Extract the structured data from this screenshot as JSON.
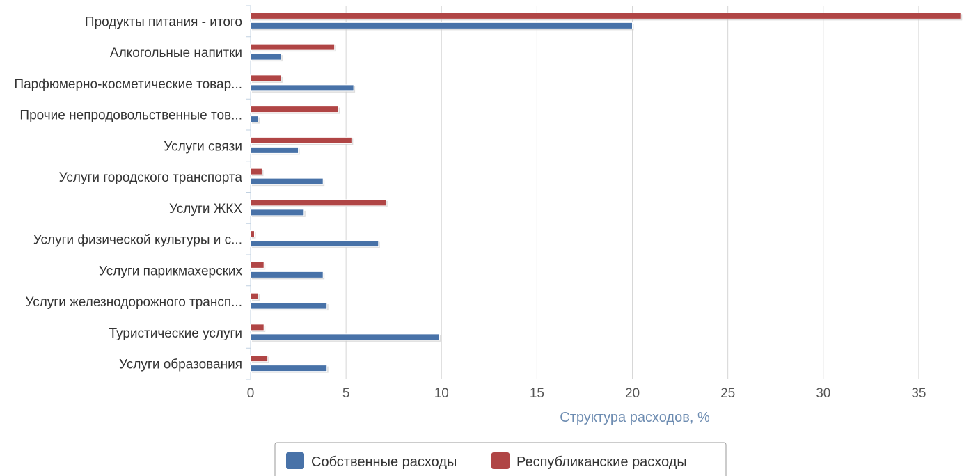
{
  "chart_data": {
    "type": "bar",
    "orientation": "horizontal",
    "categories": [
      "Продукты питания - итого",
      "Алкогольные напитки",
      "Парфюмерно-косметические товар...",
      "Прочие непродовольственные тов...",
      "Услуги связи",
      "Услуги городского транспорта",
      "Услуги ЖКХ",
      "Услуги физической культуры и с...",
      "Услуги парикмахерских",
      "Услуги железнодорожного трансп...",
      "Туристические услуги",
      "Услуги образования"
    ],
    "series": [
      {
        "name": "Республиканские расходы",
        "color": "#b04545",
        "values": [
          37.2,
          4.4,
          1.6,
          4.6,
          5.3,
          0.6,
          7.1,
          0.2,
          0.7,
          0.4,
          0.7,
          0.9
        ]
      },
      {
        "name": "Собственные расходы",
        "color": "#4872a8",
        "values": [
          20.0,
          1.6,
          5.4,
          0.4,
          2.5,
          3.8,
          2.8,
          6.7,
          3.8,
          4.0,
          9.9,
          4.0
        ]
      }
    ],
    "xlabel": "Структура расходов, %",
    "xlim": [
      0,
      37.3
    ],
    "xticks": [
      "0",
      "5",
      "10",
      "15",
      "20",
      "25",
      "30",
      "35"
    ],
    "grid": true,
    "legend_position": "bottom"
  },
  "legend": {
    "items": [
      {
        "label": "Собственные расходы",
        "color": "#4872a8"
      },
      {
        "label": "Республиканские расходы",
        "color": "#b04545"
      }
    ]
  },
  "colors": {
    "gridline": "#d6d6d6",
    "axis_line": "#c0d0e0"
  }
}
